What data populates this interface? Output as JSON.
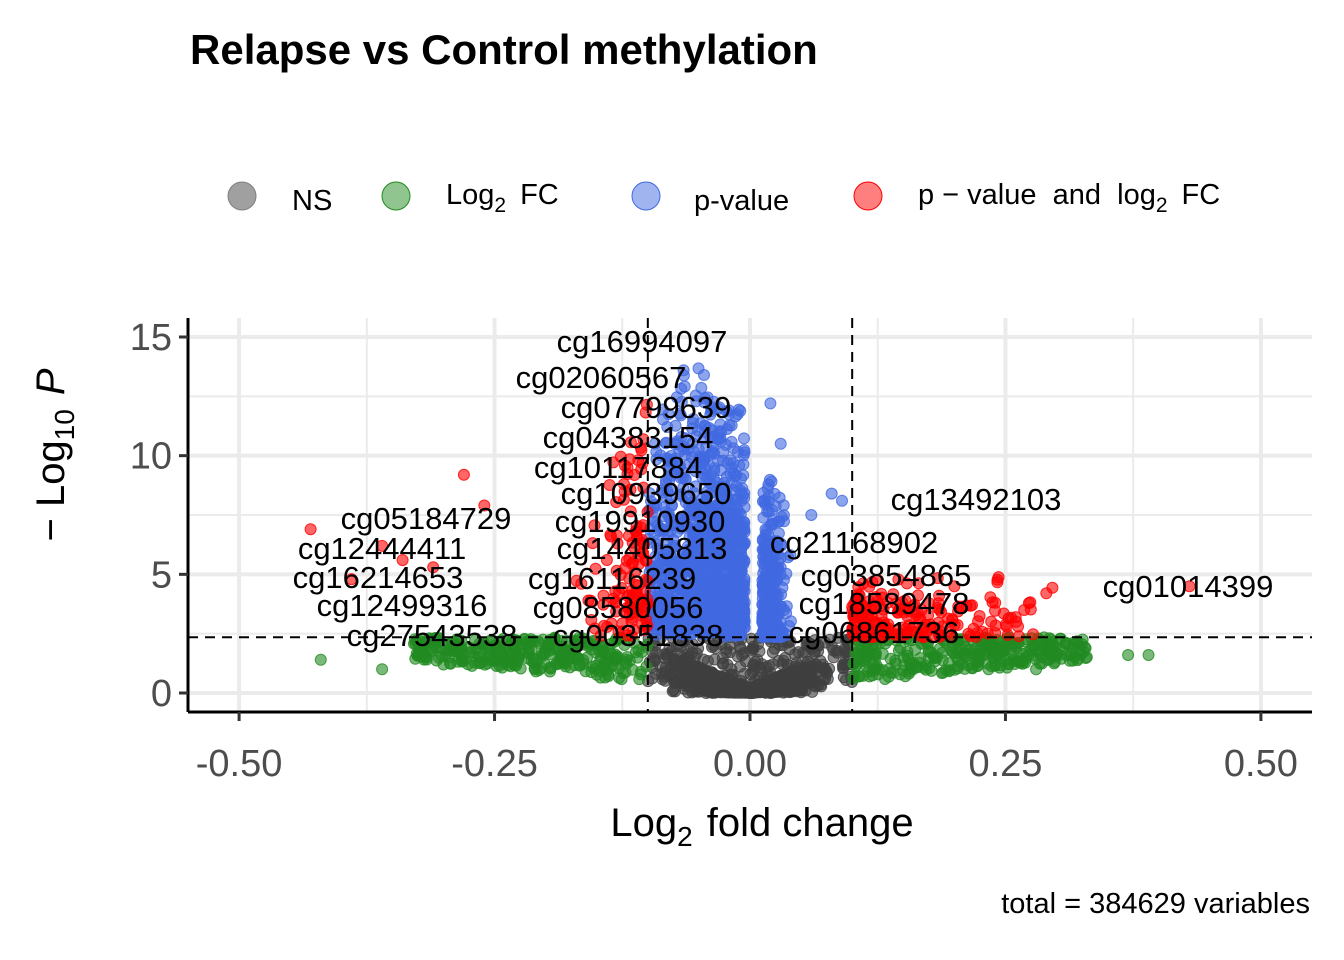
{
  "chart_data": {
    "type": "scatter",
    "title": "Relapse vs Control methylation",
    "xlabel_main": "Log",
    "xlabel_sub": "2",
    "xlabel_rest": "fold change",
    "ylabel_main": "Log",
    "ylabel_sub": "10",
    "ylabel_var": "P",
    "caption": "total = 384629 variables",
    "xlim": [
      -0.55,
      0.55
    ],
    "ylim": [
      -0.8,
      15.8
    ],
    "x_ticks": [
      -0.5,
      -0.25,
      0.0,
      0.25,
      0.5
    ],
    "x_tick_labels": [
      "-0.50",
      "-0.25",
      "0.00",
      "0.25",
      "0.50"
    ],
    "y_ticks": [
      0,
      5,
      10,
      15
    ],
    "y_tick_labels": [
      "0",
      "5",
      "10",
      "15"
    ],
    "fc_cutoff": 0.1,
    "p_cutoff_neglog10": 2.35,
    "grid": true,
    "legend_position": "top",
    "legend": [
      {
        "key": "ns",
        "label": "NS",
        "color": "#808080"
      },
      {
        "key": "fc",
        "label_main": "Log",
        "label_sub": "2",
        "label_rest": "FC",
        "color": "#228B22"
      },
      {
        "key": "p",
        "label": "p-value",
        "color": "#4169E1"
      },
      {
        "key": "pfc",
        "label_a": "p − value  and  log",
        "label_sub": "2",
        "label_rest": "FC",
        "color": "#FF0000"
      }
    ],
    "labeled_points": [
      {
        "name": "cg16994097",
        "x": -0.11,
        "y": 14.7
      },
      {
        "name": "cg02060567",
        "x": -0.14,
        "y": 13.2
      },
      {
        "name": "cg07799639",
        "x": -0.115,
        "y": 12.1
      },
      {
        "name": "cg04383154",
        "x": -0.125,
        "y": 10.9
      },
      {
        "name": "cg10117884",
        "x": -0.12,
        "y": 9.5
      },
      {
        "name": "cg10939650",
        "x": -0.105,
        "y": 8.3
      },
      {
        "name": "cg19910930",
        "x": -0.11,
        "y": 7.2
      },
      {
        "name": "cg14405813",
        "x": -0.1,
        "y": 6.0
      },
      {
        "name": "cg16116239",
        "x": -0.13,
        "y": 4.9
      },
      {
        "name": "cg08580056",
        "x": -0.15,
        "y": 3.9
      },
      {
        "name": "cg00351838",
        "x": -0.105,
        "y": 2.8
      },
      {
        "name": "cg27543538",
        "x": -0.21,
        "y": 2.6
      },
      {
        "name": "cg05184729",
        "x": -0.43,
        "y": 6.9
      },
      {
        "name": "cg12444411",
        "x": -0.345,
        "y": 6.0
      },
      {
        "name": "cg16214653",
        "x": -0.4,
        "y": 4.6
      },
      {
        "name": "cg12499316",
        "x": -0.4,
        "y": 3.2
      },
      {
        "name": "cg13492103",
        "x": 0.22,
        "y": 8.1
      },
      {
        "name": "cg21168902",
        "x": 0.103,
        "y": 6.4
      },
      {
        "name": "cg03854865",
        "x": 0.11,
        "y": 4.9
      },
      {
        "name": "cg18589478",
        "x": 0.12,
        "y": 3.7
      },
      {
        "name": "cg06861736",
        "x": 0.103,
        "y": 2.6
      },
      {
        "name": "cg01014399",
        "x": 0.43,
        "y": 4.5
      }
    ]
  }
}
